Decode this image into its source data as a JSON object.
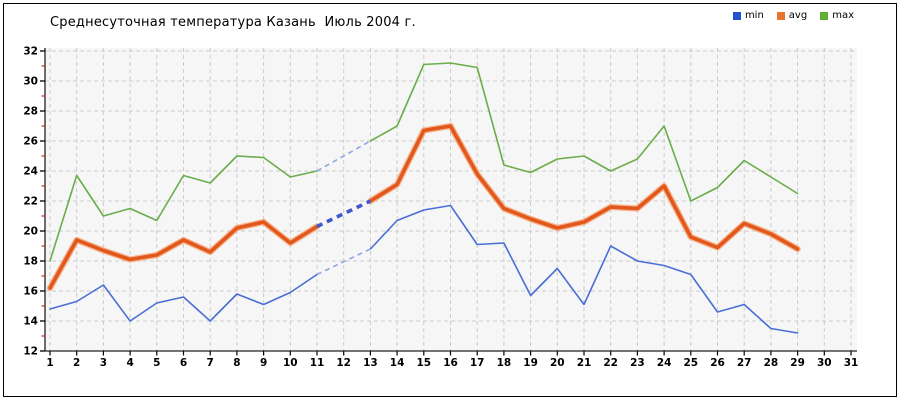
{
  "window": {
    "background": "#ffffff",
    "border_color": "#000000"
  },
  "chart_data": {
    "type": "line",
    "title": "Среднесуточная температура Казань  Июль 2004 г.",
    "xlabel": "",
    "ylabel": "",
    "x_days_range": [
      1,
      31
    ],
    "x_tick_step": 1,
    "ylim": [
      12,
      32
    ],
    "y_tick_step": 2,
    "grid": true,
    "grid_style": "dashed",
    "legend_position": "top-right",
    "legend": [
      {
        "label": "min",
        "color": "#2350cf"
      },
      {
        "label": "avg",
        "color": "#e8742c"
      },
      {
        "label": "max",
        "color": "#5fae35"
      }
    ],
    "series": [
      {
        "name": "max",
        "color": "#6aad4b",
        "width": 1.6,
        "values": [
          18.0,
          23.7,
          21.0,
          21.5,
          20.7,
          23.7,
          23.2,
          25.0,
          24.9,
          23.6,
          24.0,
          null,
          26.0,
          27.0,
          31.1,
          31.2,
          30.9,
          24.4,
          23.9,
          24.8,
          25.0,
          24.0,
          24.8,
          27.0,
          22.0,
          22.9,
          24.7,
          23.6,
          22.5,
          null,
          null
        ]
      },
      {
        "name": "min",
        "color": "#4a6fd4",
        "width": 1.6,
        "values": [
          14.8,
          15.3,
          16.4,
          14.0,
          15.2,
          15.6,
          14.0,
          15.8,
          15.1,
          15.9,
          17.1,
          null,
          18.8,
          20.7,
          21.4,
          21.7,
          19.1,
          19.2,
          15.7,
          17.5,
          15.1,
          19.0,
          18.0,
          17.7,
          17.1,
          14.6,
          15.1,
          13.5,
          13.2,
          null,
          null
        ]
      },
      {
        "name": "avg",
        "color": "#e2571c",
        "halo_color": "#f6b28b",
        "width": 3.6,
        "values": [
          16.2,
          19.4,
          18.7,
          18.1,
          18.4,
          19.4,
          18.6,
          20.2,
          20.6,
          19.2,
          20.3,
          null,
          22.0,
          23.1,
          26.7,
          27.0,
          23.8,
          21.5,
          20.8,
          20.2,
          20.6,
          21.6,
          21.5,
          23.0,
          19.6,
          18.9,
          20.5,
          19.8,
          18.8,
          null,
          null
        ]
      }
    ],
    "missing_data_gap": {
      "between_days": [
        11,
        13
      ],
      "rendering": "dashed interpolation segments",
      "thin_dash_color": "#8fa6e2",
      "thick_dash_color": "#3f58cb"
    },
    "style": {
      "plot_background": "#f6f6f6",
      "gridline_color": "#cccccc",
      "axis_color": "#222222",
      "major_tick_color": "#000000",
      "minor_tick_color": "#cc2a1f",
      "tick_label_color": "#000000"
    }
  }
}
